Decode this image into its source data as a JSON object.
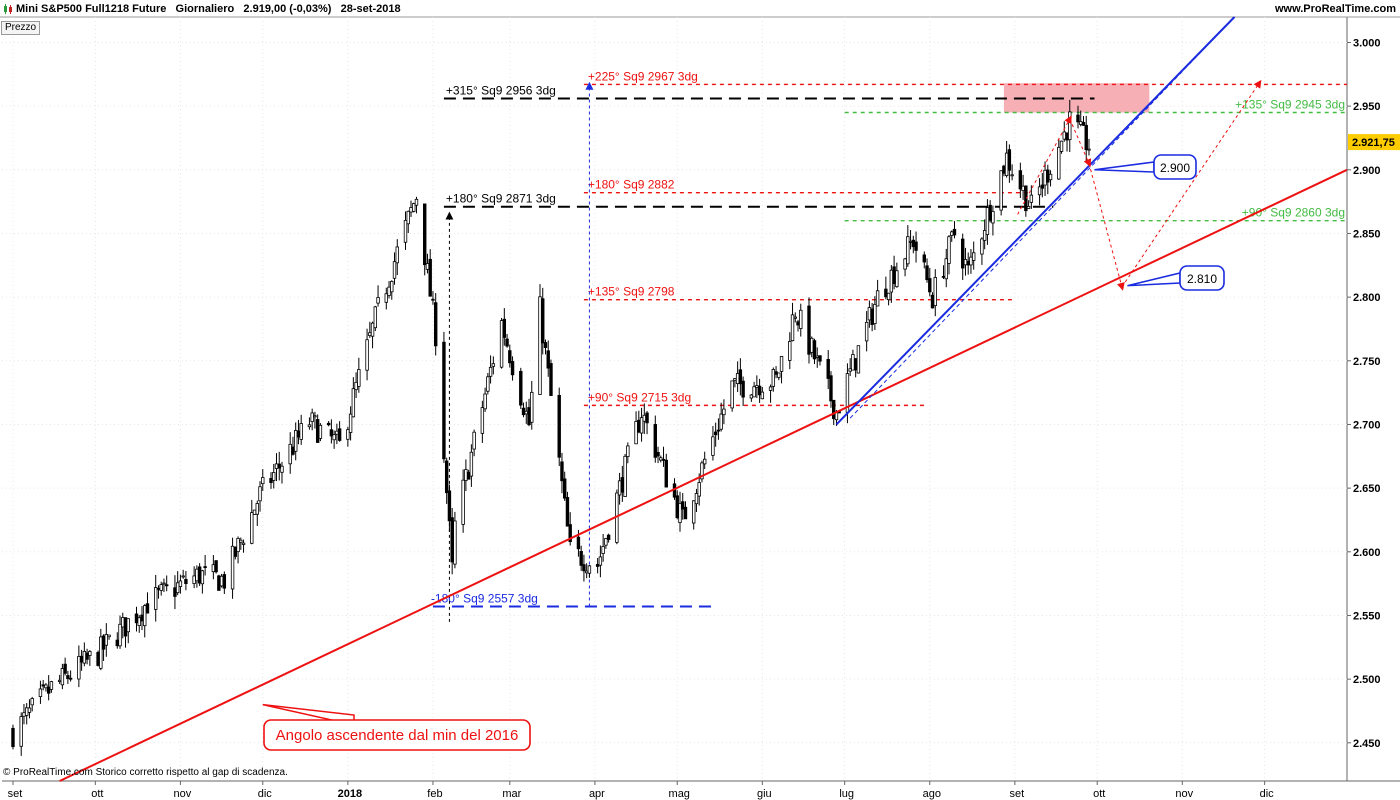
{
  "header": {
    "title": "Mini S&P500 Full1218 Future",
    "period": "Giornaliero",
    "last_change": "2.919,00 (-0,03%)",
    "date": "28-set-2018",
    "website": "www.ProRealTime.com"
  },
  "panel_label": "Prezzo",
  "footer_text": "© ProRealTime.com  Storico corretto rispetto al gap di scadenza.",
  "colors": {
    "candle_up": "#ffffff",
    "candle_down": "#000000",
    "red_line": "#ee1111",
    "blue_line": "#1a2be0",
    "green_dashed": "#44bb44",
    "black_dashed": "#000000",
    "red_dashed": "#ee1111",
    "resistance_zone": "#f4a6ad",
    "price_badge": "#ffcc00"
  },
  "chart_data": {
    "type": "candlestick",
    "symbol": "Mini S&P500 Full1218 Future",
    "timeframe": "Giornaliero",
    "x_axis": {
      "ticks": [
        {
          "label": "set",
          "date": "2017-09-01"
        },
        {
          "label": "ott",
          "date": "2017-10-01"
        },
        {
          "label": "nov",
          "date": "2017-11-01"
        },
        {
          "label": "dic",
          "date": "2017-12-01"
        },
        {
          "label": "2018",
          "date": "2018-01-01",
          "bold": true
        },
        {
          "label": "feb",
          "date": "2018-02-01"
        },
        {
          "label": "mar",
          "date": "2018-03-01"
        },
        {
          "label": "apr",
          "date": "2018-04-01"
        },
        {
          "label": "mag",
          "date": "2018-05-01"
        },
        {
          "label": "giu",
          "date": "2018-06-01"
        },
        {
          "label": "lug",
          "date": "2018-07-01"
        },
        {
          "label": "ago",
          "date": "2018-08-01"
        },
        {
          "label": "set",
          "date": "2018-09-01"
        },
        {
          "label": "ott",
          "date": "2018-10-01"
        },
        {
          "label": "nov",
          "date": "2018-11-01"
        },
        {
          "label": "dic",
          "date": "2018-12-01"
        }
      ]
    },
    "y_axis": {
      "range": [
        2420,
        3020
      ],
      "ticks": [
        {
          "value": 2450,
          "label": "2.450"
        },
        {
          "value": 2500,
          "label": "2.500"
        },
        {
          "value": 2550,
          "label": "2.550"
        },
        {
          "value": 2600,
          "label": "2.600"
        },
        {
          "value": 2650,
          "label": "2.650"
        },
        {
          "value": 2700,
          "label": "2.700"
        },
        {
          "value": 2750,
          "label": "2.750"
        },
        {
          "value": 2800,
          "label": "2.800"
        },
        {
          "value": 2850,
          "label": "2.850"
        },
        {
          "value": 2900,
          "label": "2.900"
        },
        {
          "value": 2950,
          "label": "2.950"
        },
        {
          "value": 3000,
          "label": "3.000"
        }
      ]
    },
    "last_price": {
      "value": 2921.75,
      "label": "2.921,75"
    },
    "price_path": [
      {
        "date": "2017-09-01",
        "close": 2458
      },
      {
        "date": "2017-09-15",
        "close": 2493
      },
      {
        "date": "2017-10-02",
        "close": 2520
      },
      {
        "date": "2017-10-20",
        "close": 2560
      },
      {
        "date": "2017-11-08",
        "close": 2582
      },
      {
        "date": "2017-11-17",
        "close": 2578
      },
      {
        "date": "2017-11-30",
        "close": 2645
      },
      {
        "date": "2017-12-18",
        "close": 2702
      },
      {
        "date": "2017-12-29",
        "close": 2683
      },
      {
        "date": "2018-01-12",
        "close": 2790
      },
      {
        "date": "2018-01-26",
        "close": 2880
      },
      {
        "date": "2018-02-02",
        "close": 2772
      },
      {
        "date": "2018-02-08",
        "close": 2585
      },
      {
        "date": "2018-02-09",
        "close": 2620
      },
      {
        "date": "2018-02-26",
        "close": 2780
      },
      {
        "date": "2018-03-08",
        "close": 2700
      },
      {
        "date": "2018-03-12",
        "close": 2790
      },
      {
        "date": "2018-03-23",
        "close": 2600
      },
      {
        "date": "2018-04-02",
        "close": 2590
      },
      {
        "date": "2018-04-18",
        "close": 2710
      },
      {
        "date": "2018-05-03",
        "close": 2625
      },
      {
        "date": "2018-05-21",
        "close": 2730
      },
      {
        "date": "2018-06-06",
        "close": 2735
      },
      {
        "date": "2018-06-13",
        "close": 2790
      },
      {
        "date": "2018-06-28",
        "close": 2710
      },
      {
        "date": "2018-07-13",
        "close": 2800
      },
      {
        "date": "2018-07-26",
        "close": 2845
      },
      {
        "date": "2018-08-02",
        "close": 2800
      },
      {
        "date": "2018-08-10",
        "close": 2850
      },
      {
        "date": "2018-08-15",
        "close": 2820
      },
      {
        "date": "2018-08-29",
        "close": 2910
      },
      {
        "date": "2018-09-07",
        "close": 2870
      },
      {
        "date": "2018-09-21",
        "close": 2938
      },
      {
        "date": "2018-09-28",
        "close": 2919
      }
    ],
    "square9_levels": [
      {
        "label": "+225° Sq9 2967 3dg",
        "value": 2967,
        "color": "red",
        "style": "dashed",
        "from": "2018-03-28",
        "to": "2018-12-31"
      },
      {
        "label": "+315° Sq9 2956 3dg",
        "value": 2956,
        "color": "black",
        "style": "dashed",
        "from": "2018-02-05",
        "to": "2018-09-30"
      },
      {
        "label": "+135° Sq9 2945 3dg",
        "value": 2945,
        "color": "green",
        "style": "dashed",
        "from": "2018-07-01",
        "to": "2018-12-31"
      },
      {
        "label": "+180° Sq9 2882",
        "value": 2882,
        "color": "red",
        "style": "dashed",
        "from": "2018-03-28",
        "to": "2018-09-06"
      },
      {
        "label": "+180° Sq9 2871 3dg",
        "value": 2871,
        "color": "black",
        "style": "dashed",
        "from": "2018-02-05",
        "to": "2018-09-15"
      },
      {
        "label": "+90° Sq9 2860 3dg",
        "value": 2860,
        "color": "green",
        "style": "dashed",
        "from": "2018-07-01",
        "to": "2018-12-31"
      },
      {
        "label": "+135° Sq9 2798",
        "value": 2798,
        "color": "red",
        "style": "dashed",
        "from": "2018-03-28",
        "to": "2018-08-31"
      },
      {
        "label": "+90° Sq9 2715 3dg",
        "value": 2715,
        "color": "red",
        "style": "dashed",
        "from": "2018-03-28",
        "to": "2018-07-31"
      },
      {
        "label": "-180° Sq9 2557 3dg",
        "value": 2557,
        "color": "blue",
        "style": "dashed",
        "from": "2018-02-01",
        "to": "2018-05-15"
      }
    ],
    "trendlines": [
      {
        "name": "Angolo ascendente dal min del 2016",
        "color": "red",
        "style": "solid",
        "start": {
          "date": "2017-09-18",
          "value": 2420
        },
        "end": {
          "date": "2018-12-31",
          "value": 2900
        }
      },
      {
        "color": "blue",
        "style": "solid",
        "start": {
          "date": "2018-06-28",
          "value": 2700
        },
        "end": {
          "date": "2018-11-20",
          "value": 3020
        }
      },
      {
        "color": "blue",
        "style": "dashed",
        "start": {
          "date": "2018-07-03",
          "value": 2705
        },
        "end": {
          "date": "2018-11-20",
          "value": 3020
        }
      }
    ],
    "projections": [
      {
        "color": "red",
        "style": "dotted",
        "points": [
          {
            "date": "2018-09-02",
            "value": 2865
          },
          {
            "date": "2018-09-21",
            "value": 2940
          },
          {
            "date": "2018-09-28",
            "value": 2905
          },
          {
            "date": "2018-10-10",
            "value": 2808
          },
          {
            "date": "2018-11-29",
            "value": 2968
          }
        ]
      }
    ],
    "vertical_arrows": [
      {
        "color": "black",
        "date": "2018-02-07",
        "from": 2545,
        "to": 2864
      },
      {
        "color": "blue",
        "date": "2018-03-30",
        "from": 2557,
        "to": 2966
      }
    ],
    "zones": [
      {
        "color": "pink",
        "from_date": "2018-08-28",
        "to_date": "2018-10-20",
        "from_value": 2945,
        "to_value": 2968
      }
    ],
    "callouts": [
      {
        "label": "2.900",
        "value": 2900,
        "pointer": {
          "date": "2018-09-30",
          "value": 2900
        }
      },
      {
        "label": "2.810",
        "value": 2810,
        "pointer": {
          "date": "2018-10-12",
          "value": 2809
        }
      },
      {
        "label": "Angolo ascendente dal min del 2016",
        "pointer": {
          "date": "2017-12-01",
          "value": 2480
        }
      }
    ]
  }
}
